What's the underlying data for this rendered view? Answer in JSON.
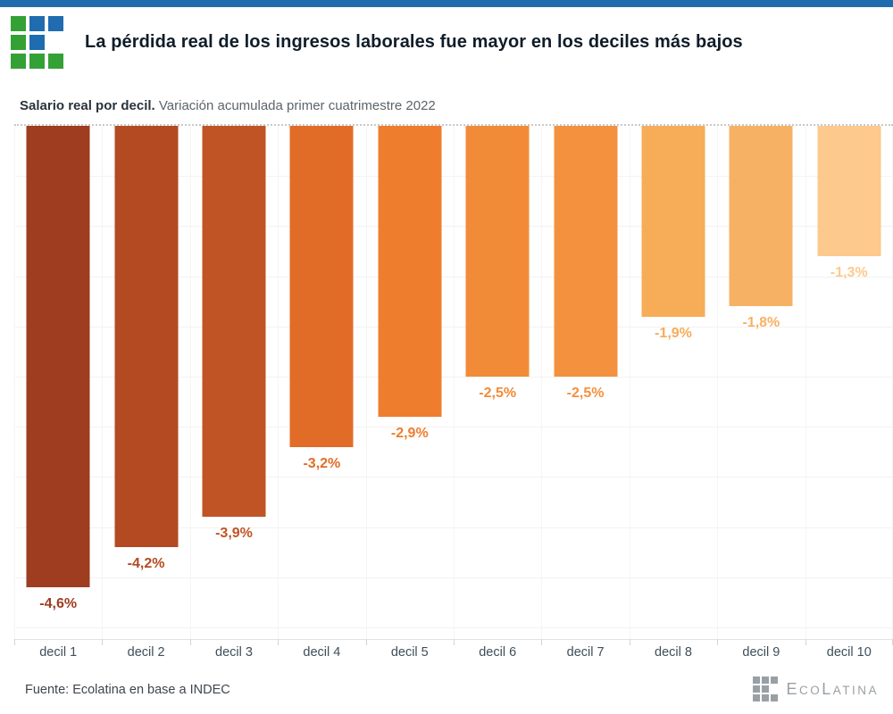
{
  "header": {
    "top_bar_color": "#1e6cae",
    "title": "La pérdida real de los ingresos laborales fue mayor en los deciles más bajos",
    "logo": {
      "colors": {
        "green": "#34a136",
        "blue": "#1f6cb0"
      },
      "pattern": [
        [
          "green",
          "blue",
          "blue"
        ],
        [
          "green",
          "blue",
          null
        ],
        [
          "green",
          "green",
          "green"
        ]
      ]
    }
  },
  "subtitle": {
    "bold": "Salario real por decil.",
    "regular": " Variación acumulada primer cuatrimestre 2022"
  },
  "chart_data": {
    "type": "bar",
    "title": "Salario real por decil. Variación acumulada primer cuatrimestre 2022",
    "categories": [
      "decil 1",
      "decil 2",
      "decil 3",
      "decil 4",
      "decil 5",
      "decil 6",
      "decil 7",
      "decil 8",
      "decil 9",
      "decil 10"
    ],
    "values": [
      -4.6,
      -4.2,
      -3.9,
      -3.2,
      -2.9,
      -2.5,
      -2.5,
      -1.9,
      -1.8,
      -1.3
    ],
    "value_labels": [
      "-4,6%",
      "-4,2%",
      "-3,9%",
      "-3,2%",
      "-2,9%",
      "-2,5%",
      "-2,5%",
      "-1,9%",
      "-1,8%",
      "-1,3%"
    ],
    "bar_colors": [
      "#9e3d20",
      "#b34a22",
      "#c05424",
      "#e16c28",
      "#ef7d2e",
      "#f28b38",
      "#f4913e",
      "#f7ac58",
      "#f7b164",
      "#fdc98c"
    ],
    "xlabel": "",
    "ylabel": "",
    "unit": "%",
    "ylim": [
      -5.115,
      0
    ],
    "gridline_step": 0.5,
    "grid": "on",
    "zero_line_style": "dotted",
    "orientation": "vertical-negative",
    "legend": "none"
  },
  "footer": {
    "source": "Fuente: Ecolatina en base a INDEC",
    "brand": {
      "color": "#99a0a5",
      "text_parts": [
        {
          "text": "E",
          "size": "lg"
        },
        {
          "text": "CO",
          "size": "sm"
        },
        {
          "text": "L",
          "size": "lg"
        },
        {
          "text": "ATINA",
          "size": "sm"
        }
      ]
    }
  }
}
